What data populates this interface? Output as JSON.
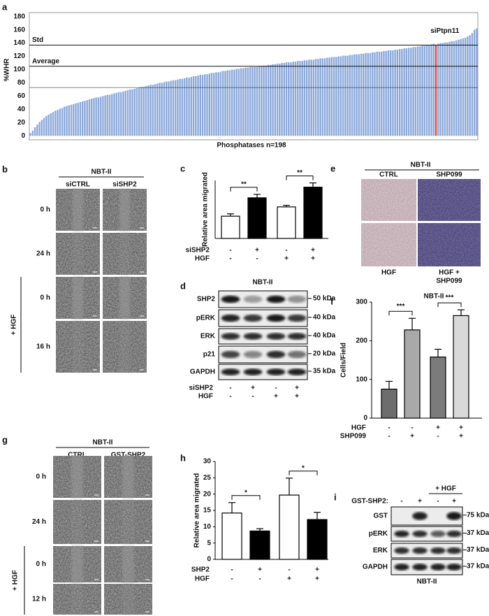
{
  "chart_data": [
    {
      "panel_label": "a",
      "type": "bar",
      "y_label": "%WHR",
      "x_label": "Phosphatases n=198",
      "values": [
        4,
        8,
        13,
        17,
        21,
        24,
        27,
        30,
        32,
        34,
        36,
        38,
        39,
        41,
        42,
        44,
        45,
        46,
        47,
        48,
        49,
        50,
        51,
        52,
        53,
        54,
        55,
        56,
        57,
        58,
        58,
        59,
        60,
        61,
        62,
        62,
        63,
        64,
        65,
        66,
        66,
        67,
        68,
        69,
        70,
        70,
        71,
        72,
        73,
        74,
        74,
        75,
        76,
        77,
        77,
        78,
        79,
        80,
        80,
        81,
        82,
        82,
        83,
        84,
        84,
        85,
        86,
        86,
        87,
        88,
        88,
        89,
        90,
        90,
        91,
        92,
        92,
        93,
        93,
        94,
        95,
        95,
        96,
        96,
        97,
        98,
        98,
        99,
        99,
        100,
        100,
        101,
        101,
        102,
        102,
        103,
        103,
        104,
        104,
        104,
        104,
        105,
        105,
        106,
        106,
        107,
        107,
        108,
        108,
        109,
        109,
        110,
        110,
        111,
        111,
        111,
        112,
        112,
        113,
        113,
        113,
        114,
        114,
        115,
        115,
        115,
        116,
        116,
        117,
        117,
        117,
        118,
        118,
        119,
        119,
        119,
        120,
        120,
        121,
        121,
        121,
        122,
        122,
        123,
        123,
        123,
        124,
        124,
        125,
        125,
        125,
        126,
        126,
        127,
        127,
        127,
        128,
        128,
        129,
        129,
        129,
        130,
        130,
        131,
        131,
        132,
        132,
        133,
        133,
        134,
        134,
        135,
        135,
        136,
        136,
        137,
        137,
        138,
        139,
        137,
        139,
        140,
        140,
        141,
        141,
        142,
        143,
        143,
        144,
        145,
        146,
        147,
        148,
        150,
        152,
        155,
        160,
        162
      ],
      "color": "#8eaadb",
      "highlight_index": 179,
      "highlight_color": "#e0473c",
      "highlight_label": "siPtpn11",
      "ylim": [
        -6,
        186
      ],
      "yticks": [
        0,
        20,
        40,
        60,
        80,
        100,
        120,
        140,
        160,
        180
      ],
      "reference_lines": [
        {
          "value": 137,
          "label": "Std"
        },
        {
          "value": 105,
          "label": "Average"
        },
        {
          "value": 73
        }
      ]
    },
    {
      "panel_label": "c",
      "type": "bar",
      "y_label": "Relative area migrated",
      "values": [
        11.5,
        21,
        16.3,
        26.5
      ],
      "errors": [
        1.2,
        1.8,
        0.8,
        2.2
      ],
      "colors": [
        "#ffffff",
        "#000000",
        "#ffffff",
        "#000000"
      ],
      "ylim": [
        0,
        30
      ],
      "conditions": [
        {
          "name": "siSHP2",
          "signs": [
            "-",
            "+",
            "-",
            "+"
          ]
        },
        {
          "name": "HGF",
          "signs": [
            "-",
            "-",
            "+",
            "+"
          ]
        }
      ],
      "comparisons": [
        {
          "label": "**",
          "bars": [
            0,
            1
          ]
        },
        {
          "label": "**",
          "bars": [
            2,
            3
          ]
        }
      ]
    },
    {
      "panel_label": "f",
      "type": "bar",
      "title": "NBT-II",
      "y_label": "Cells/Field",
      "values": [
        75,
        228,
        158,
        265
      ],
      "errors": [
        20,
        30,
        20,
        15
      ],
      "colors": [
        "#6d6d6d",
        "#a9a9a9",
        "#7b7b7b",
        "#d9d9d9"
      ],
      "ylim": [
        0,
        300
      ],
      "yticks": [
        0,
        100,
        200,
        300
      ],
      "conditions": [
        {
          "name": "HGF",
          "signs": [
            "-",
            "-",
            "+",
            "+"
          ]
        },
        {
          "name": "SHP099",
          "signs": [
            "-",
            "+",
            "-",
            "+"
          ]
        }
      ],
      "comparisons": [
        {
          "label": "***",
          "bars": [
            0,
            1
          ]
        },
        {
          "label": "***",
          "bars": [
            2,
            3
          ]
        }
      ]
    },
    {
      "panel_label": "h",
      "type": "bar",
      "y_label": "Relative area migrated",
      "values": [
        14.2,
        8.7,
        19.7,
        12.2
      ],
      "errors": [
        3.2,
        0.7,
        5.2,
        2.2
      ],
      "colors": [
        "#ffffff",
        "#000000",
        "#ffffff",
        "#000000"
      ],
      "ylim": [
        0,
        30
      ],
      "yticks": [
        0,
        5,
        10,
        15,
        20,
        25,
        30
      ],
      "conditions": [
        {
          "name": "SHP2",
          "signs": [
            "-",
            "+",
            "-",
            "+"
          ]
        },
        {
          "name": "HGF",
          "signs": [
            "-",
            "-",
            "+",
            "+"
          ]
        }
      ],
      "comparisons": [
        {
          "label": "*",
          "bars": [
            0,
            1
          ]
        },
        {
          "label": "*",
          "bars": [
            2,
            3
          ]
        }
      ]
    }
  ],
  "panel_b": {
    "label": "b",
    "title": "NBT-II",
    "columns": [
      "siCTRL",
      "siSHP2"
    ],
    "rows": [
      "0 h",
      "24 h",
      "0 h",
      "16 h"
    ],
    "group_label": "+ HGF"
  },
  "panel_d": {
    "label": "d",
    "title": "NBT-II",
    "blots": [
      {
        "protein": "SHP2",
        "marker": "50 kDa"
      },
      {
        "protein": "pERK",
        "marker": "40 kDa"
      },
      {
        "protein": "ERK",
        "marker": "40 kDa"
      },
      {
        "protein": "p21",
        "marker": "20 kDa"
      },
      {
        "protein": "GAPDH",
        "marker": "35 kDa"
      }
    ],
    "conditions": [
      {
        "name": "siSHP2",
        "signs": [
          "-",
          "+",
          "-",
          "+"
        ]
      },
      {
        "name": "HGF",
        "signs": [
          "-",
          "-",
          "+",
          "+"
        ]
      }
    ]
  },
  "panel_e": {
    "label": "e",
    "title": "NBT-II",
    "columns": [
      "CTRL",
      "SHP099"
    ],
    "bottom_labels": [
      [
        "HGF"
      ],
      [
        "HGF +",
        "SHP099"
      ]
    ]
  },
  "panel_g": {
    "label": "g",
    "title": "NBT-II",
    "columns": [
      "CTRL",
      "GST-SHP2"
    ],
    "rows": [
      "0 h",
      "24 h",
      "0 h",
      "12 h"
    ],
    "group_label": "+ HGF"
  },
  "panel_i": {
    "label": "i",
    "group_label": "+ HGF",
    "condition": {
      "name": "GST-SHP2:",
      "signs": [
        "-",
        "+",
        "-",
        "+"
      ]
    },
    "blots": [
      {
        "protein": "GST",
        "marker": "75 kDa"
      },
      {
        "protein": "pERK",
        "marker": "37 kDa"
      },
      {
        "protein": "ERK",
        "marker": "37 kDa"
      },
      {
        "protein": "GAPDH",
        "marker": "37 kDa"
      }
    ],
    "footer": "NBT-II"
  }
}
